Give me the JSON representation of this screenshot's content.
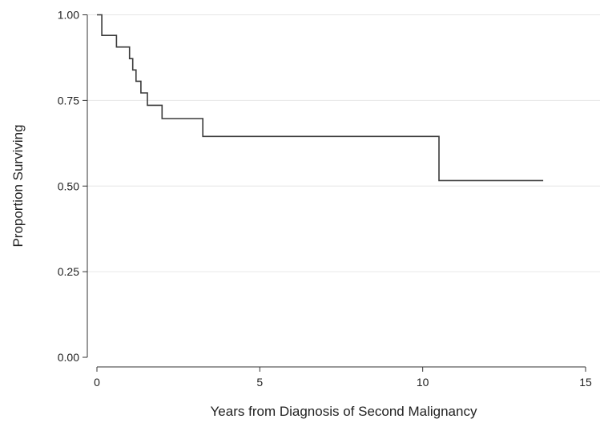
{
  "chart_data": {
    "type": "line",
    "subtype": "kaplan-meier-step",
    "title": "",
    "xlabel": "Years from Diagnosis of Second Malignancy",
    "ylabel": "Proportion Surviving",
    "xlim": [
      0,
      15
    ],
    "ylim": [
      0,
      1
    ],
    "x_ticks": [
      0,
      5,
      10,
      15
    ],
    "x_tick_labels": [
      "0",
      "5",
      "10",
      "15"
    ],
    "y_ticks": [
      0,
      0.25,
      0.5,
      0.75,
      1
    ],
    "y_tick_labels": [
      "0.00",
      "0.25",
      "0.50",
      "0.75",
      "1.00"
    ],
    "grid": "horizontal",
    "legend": "none",
    "line_color": "#3a3a3a",
    "grid_color": "#e6e6e6",
    "series": [
      {
        "steps": [
          {
            "x": 0,
            "y": 1.0
          },
          {
            "x": 0.15,
            "y": 0.94
          },
          {
            "x": 0.6,
            "y": 0.906
          },
          {
            "x": 1.0,
            "y": 0.872
          },
          {
            "x": 1.1,
            "y": 0.839
          },
          {
            "x": 1.2,
            "y": 0.806
          },
          {
            "x": 1.35,
            "y": 0.772
          },
          {
            "x": 1.55,
            "y": 0.736
          },
          {
            "x": 2.0,
            "y": 0.697
          },
          {
            "x": 3.25,
            "y": 0.645
          },
          {
            "x": 10.5,
            "y": 0.516
          }
        ],
        "end_x": 13.7
      }
    ]
  }
}
